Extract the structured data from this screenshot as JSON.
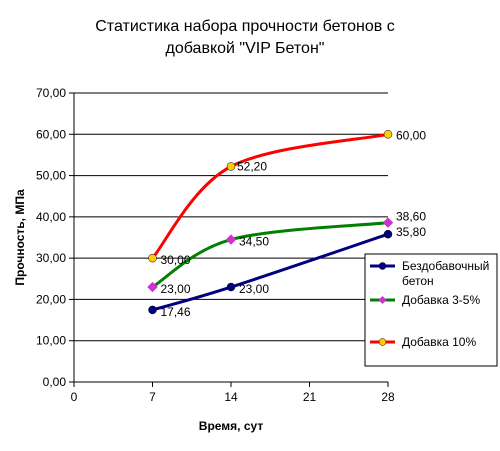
{
  "chart_data": {
    "type": "line",
    "title_lines": [
      "Статистика набора прочности бетонов с",
      "добавкой \"VIP Бетон\""
    ],
    "xlabel": "Время, сут",
    "ylabel": "Прочность, МПа",
    "x_ticks": [
      "0",
      "7",
      "14",
      "21",
      "28"
    ],
    "y_ticks": [
      "0,00",
      "10,00",
      "20,00",
      "30,00",
      "40,00",
      "50,00",
      "60,00",
      "70,00"
    ],
    "xlim": [
      0,
      28
    ],
    "ylim": [
      0,
      70
    ],
    "grid": "horizontal",
    "legend_position": "right",
    "series": [
      {
        "name_lines": [
          "Бездобавочный",
          "бетон"
        ],
        "color": "#000080",
        "marker_color": "#000080",
        "marker": "circle",
        "x": [
          7,
          14,
          28
        ],
        "values": [
          17.46,
          23.0,
          35.8
        ],
        "labels": [
          "17,46",
          "23,00",
          "35,80"
        ]
      },
      {
        "name_lines": [
          "Добавка 3-5%"
        ],
        "color": "#008000",
        "marker_color": "#cc33cc",
        "marker": "diamond",
        "x": [
          7,
          14,
          28
        ],
        "values": [
          23.0,
          34.5,
          38.6
        ],
        "labels": [
          "23,00",
          "34,50",
          "38,60"
        ]
      },
      {
        "name_lines": [
          "Добавка 10%"
        ],
        "color": "#ff0000",
        "marker_color": "#ffcc00",
        "marker": "circle",
        "x": [
          7,
          14,
          28
        ],
        "values": [
          30.0,
          52.2,
          60.0
        ],
        "labels": [
          "30,00",
          "52,20",
          "60,00"
        ]
      }
    ]
  }
}
